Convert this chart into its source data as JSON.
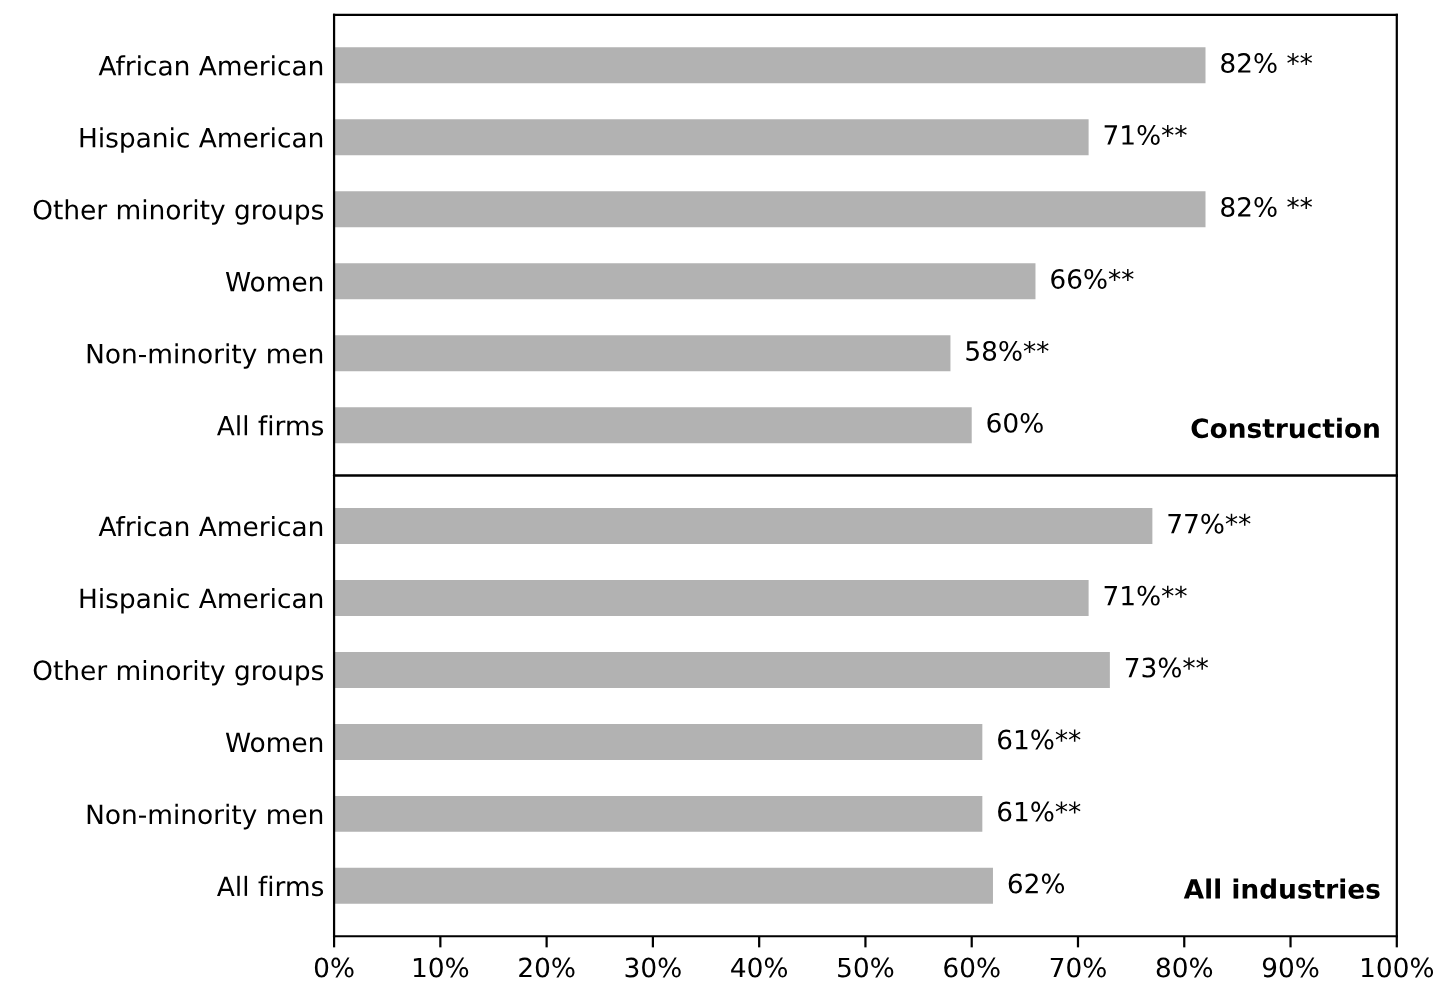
{
  "chart_data": [
    {
      "type": "bar",
      "orientation": "horizontal",
      "categories": [
        "African American",
        "Hispanic American",
        "Other minority groups",
        "Women",
        "Non-minority men",
        "All firms"
      ],
      "values": [
        82,
        71,
        82,
        66,
        58,
        60
      ],
      "value_labels": [
        "82% **",
        "71%**",
        "82% **",
        "66%**",
        "58%**",
        "60%"
      ],
      "color": "#b2b2b2",
      "xlim": [
        0,
        100
      ],
      "tick_labels": "y",
      "grid": false,
      "annotations": [
        "Construction"
      ]
    },
    {
      "type": "bar",
      "orientation": "horizontal",
      "categories": [
        "African American",
        "Hispanic American",
        "Other minority groups",
        "Women",
        "Non-minority men",
        "All firms"
      ],
      "values": [
        77,
        71,
        73,
        61,
        61,
        62
      ],
      "value_labels": [
        "77%**",
        "71%**",
        "73%**",
        "61%**",
        "61%**",
        "62%"
      ],
      "color": "#b2b2b2",
      "xlim": [
        0,
        100
      ],
      "xticks": [
        {
          "value": 0,
          "label": "0%"
        },
        {
          "value": 10,
          "label": "10%"
        },
        {
          "value": 20,
          "label": "20%"
        },
        {
          "value": 30,
          "label": "30%"
        },
        {
          "value": 40,
          "label": "40%"
        },
        {
          "value": 50,
          "label": "50%"
        },
        {
          "value": 60,
          "label": "60%"
        },
        {
          "value": 70,
          "label": "70%"
        },
        {
          "value": 80,
          "label": "80%"
        },
        {
          "value": 90,
          "label": "90%"
        },
        {
          "value": 100,
          "label": "100%"
        }
      ],
      "grid": false,
      "annotations": [
        "All industries"
      ]
    }
  ]
}
